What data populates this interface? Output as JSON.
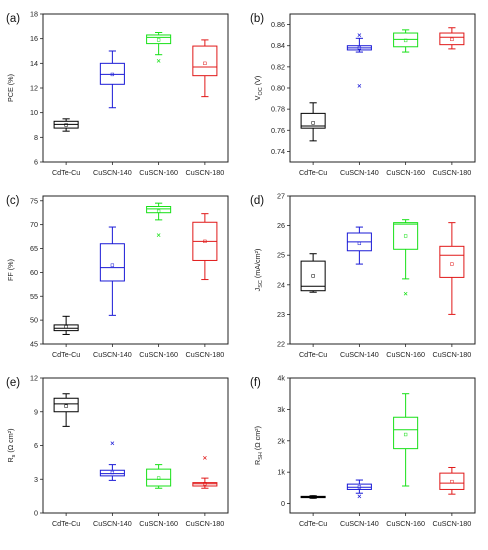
{
  "colors": {
    "CdTe-Cu": "#000000",
    "CuSCN-140": "#1a1ad6",
    "CuSCN-160": "#18e018",
    "CuSCN-180": "#e01818"
  },
  "chart_data": [
    {
      "type": "box",
      "panel": "(a)",
      "ylabel": "PCE (%)",
      "ylabel_sub": "",
      "ylabel_suffix": "",
      "ylim": [
        6,
        18
      ],
      "yticks": [
        6,
        8,
        10,
        12,
        14,
        16,
        18
      ],
      "ytick_labels": [
        "6",
        "8",
        "10",
        "12",
        "14",
        "16",
        "18"
      ],
      "categories": [
        "CdTe-Cu",
        "CuSCN-140",
        "CuSCN-160",
        "CuSCN-180"
      ],
      "boxes": [
        {
          "min": 8.5,
          "q1": 8.75,
          "median": 9.05,
          "q3": 9.3,
          "max": 9.5,
          "mean": 9.0,
          "outliers": []
        },
        {
          "min": 10.4,
          "q1": 12.3,
          "median": 13.1,
          "q3": 14.0,
          "max": 15.0,
          "mean": 13.1,
          "outliers": []
        },
        {
          "min": 14.7,
          "q1": 15.6,
          "median": 16.1,
          "q3": 16.3,
          "max": 16.5,
          "mean": 15.9,
          "outliers": [
            14.2
          ]
        },
        {
          "min": 11.3,
          "q1": 13.0,
          "median": 13.7,
          "q3": 15.4,
          "max": 15.9,
          "mean": 14.0,
          "outliers": []
        }
      ]
    },
    {
      "type": "box",
      "panel": "(b)",
      "ylabel": "V",
      "ylabel_sub": "OC",
      "ylabel_suffix": " (V)",
      "ylim": [
        0.73,
        0.87
      ],
      "yticks": [
        0.74,
        0.76,
        0.78,
        0.8,
        0.82,
        0.84,
        0.86
      ],
      "ytick_labels": [
        "0.74",
        "0.76",
        "0.78",
        "0.80",
        "0.82",
        "0.84",
        "0.86"
      ],
      "categories": [
        "CdTe-Cu",
        "CuSCN-140",
        "CuSCN-160",
        "CuSCN-180"
      ],
      "boxes": [
        {
          "min": 0.75,
          "q1": 0.762,
          "median": 0.764,
          "q3": 0.776,
          "max": 0.786,
          "mean": 0.767,
          "outliers": []
        },
        {
          "min": 0.834,
          "q1": 0.836,
          "median": 0.838,
          "q3": 0.84,
          "max": 0.847,
          "mean": 0.838,
          "outliers": [
            0.802,
            0.85
          ]
        },
        {
          "min": 0.834,
          "q1": 0.839,
          "median": 0.846,
          "q3": 0.852,
          "max": 0.855,
          "mean": 0.845,
          "outliers": []
        },
        {
          "min": 0.837,
          "q1": 0.841,
          "median": 0.848,
          "q3": 0.852,
          "max": 0.857,
          "mean": 0.846,
          "outliers": []
        }
      ]
    },
    {
      "type": "box",
      "panel": "(c)",
      "ylabel": "FF (%)",
      "ylabel_sub": "",
      "ylabel_suffix": "",
      "ylim": [
        45,
        76
      ],
      "yticks": [
        45,
        50,
        55,
        60,
        65,
        70,
        75
      ],
      "ytick_labels": [
        "45",
        "50",
        "55",
        "60",
        "65",
        "70",
        "75"
      ],
      "categories": [
        "CdTe-Cu",
        "CuSCN-140",
        "CuSCN-160",
        "CuSCN-180"
      ],
      "boxes": [
        {
          "min": 47.0,
          "q1": 47.8,
          "median": 48.3,
          "q3": 49.0,
          "max": 50.8,
          "mean": 48.6,
          "outliers": []
        },
        {
          "min": 51.0,
          "q1": 58.2,
          "median": 61.0,
          "q3": 66.0,
          "max": 69.5,
          "mean": 61.5,
          "outliers": []
        },
        {
          "min": 71.0,
          "q1": 72.5,
          "median": 73.3,
          "q3": 73.8,
          "max": 74.5,
          "mean": 72.8,
          "outliers": [
            67.8
          ]
        },
        {
          "min": 58.5,
          "q1": 62.5,
          "median": 66.5,
          "q3": 70.5,
          "max": 72.3,
          "mean": 66.5,
          "outliers": []
        }
      ]
    },
    {
      "type": "box",
      "panel": "(d)",
      "ylabel": "J",
      "ylabel_sub": "SC",
      "ylabel_suffix": " (mA/cm²)",
      "ylim": [
        22,
        27
      ],
      "yticks": [
        22,
        23,
        24,
        25,
        26,
        27
      ],
      "ytick_labels": [
        "22",
        "23",
        "24",
        "25",
        "26",
        "27"
      ],
      "categories": [
        "CdTe-Cu",
        "CuSCN-140",
        "CuSCN-160",
        "CuSCN-180"
      ],
      "boxes": [
        {
          "min": 23.75,
          "q1": 23.8,
          "median": 23.95,
          "q3": 24.8,
          "max": 25.05,
          "mean": 24.3,
          "outliers": []
        },
        {
          "min": 24.7,
          "q1": 25.15,
          "median": 25.45,
          "q3": 25.75,
          "max": 25.95,
          "mean": 25.4,
          "outliers": []
        },
        {
          "min": 24.2,
          "q1": 25.2,
          "median": 26.05,
          "q3": 26.1,
          "max": 26.2,
          "mean": 25.65,
          "outliers": [
            23.7
          ]
        },
        {
          "min": 23.0,
          "q1": 24.25,
          "median": 25.0,
          "q3": 25.3,
          "max": 26.1,
          "mean": 24.7,
          "outliers": []
        }
      ]
    },
    {
      "type": "box",
      "panel": "(e)",
      "ylabel": "R",
      "ylabel_sub": "s",
      "ylabel_suffix": " (Ω cm²)",
      "ylim": [
        0,
        12
      ],
      "yticks": [
        0,
        3,
        6,
        9,
        12
      ],
      "ytick_labels": [
        "0",
        "3",
        "6",
        "9",
        "12"
      ],
      "categories": [
        "CdTe-Cu",
        "CuSCN-140",
        "CuSCN-160",
        "CuSCN-180"
      ],
      "boxes": [
        {
          "min": 7.7,
          "q1": 9.0,
          "median": 9.7,
          "q3": 10.2,
          "max": 10.6,
          "mean": 9.5,
          "outliers": []
        },
        {
          "min": 2.9,
          "q1": 3.3,
          "median": 3.5,
          "q3": 3.8,
          "max": 4.3,
          "mean": 3.6,
          "outliers": [
            6.2
          ]
        },
        {
          "min": 2.2,
          "q1": 2.4,
          "median": 3.0,
          "q3": 3.9,
          "max": 4.3,
          "mean": 3.1,
          "outliers": []
        },
        {
          "min": 2.2,
          "q1": 2.4,
          "median": 2.6,
          "q3": 2.7,
          "max": 3.1,
          "mean": 2.6,
          "outliers": [
            4.9
          ]
        }
      ]
    },
    {
      "type": "box",
      "panel": "(f)",
      "ylabel": "R",
      "ylabel_sub": "SH",
      "ylabel_suffix": " (Ω cm²)",
      "ylim": [
        -300,
        4000
      ],
      "yticks": [
        0,
        1000,
        2000,
        3000,
        4000
      ],
      "ytick_labels": [
        "0",
        "1k",
        "2k",
        "3k",
        "4k"
      ],
      "categories": [
        "CdTe-Cu",
        "CuSCN-140",
        "CuSCN-160",
        "CuSCN-180"
      ],
      "boxes": [
        {
          "min": 170,
          "q1": 190,
          "median": 210,
          "q3": 230,
          "max": 250,
          "mean": 210,
          "outliers": []
        },
        {
          "min": 330,
          "q1": 450,
          "median": 520,
          "q3": 620,
          "max": 750,
          "mean": 530,
          "outliers": [
            230
          ]
        },
        {
          "min": 560,
          "q1": 1750,
          "median": 2350,
          "q3": 2750,
          "max": 3500,
          "mean": 2200,
          "outliers": []
        },
        {
          "min": 300,
          "q1": 450,
          "median": 650,
          "q3": 970,
          "max": 1150,
          "mean": 700,
          "outliers": []
        }
      ]
    }
  ]
}
